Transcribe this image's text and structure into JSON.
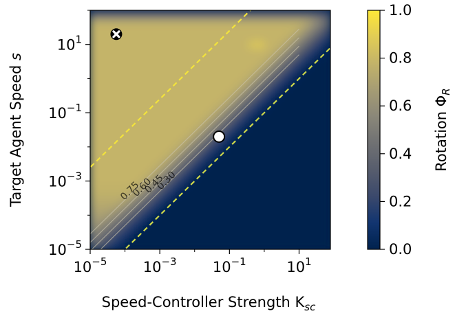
{
  "chart_data": {
    "type": "heatmap",
    "title": "",
    "xlabel": "Speed-Controller Strength K",
    "xlabel_sub": "sc",
    "ylabel": "Target Agent Speed ",
    "ylabel_var": "s",
    "x_scale": "log",
    "y_scale": "log",
    "xlim_exp": [
      -5,
      1.9
    ],
    "ylim_exp": [
      -5,
      2.0
    ],
    "x_ticks": [
      {
        "exp": -5,
        "base": "10",
        "sup": "−5"
      },
      {
        "exp": -3,
        "base": "10",
        "sup": "−3"
      },
      {
        "exp": -1,
        "base": "10",
        "sup": "−1"
      },
      {
        "exp": 1,
        "base": "10",
        "sup": "1"
      }
    ],
    "y_ticks": [
      {
        "exp": -5,
        "base": "10",
        "sup": "−5"
      },
      {
        "exp": -3,
        "base": "10",
        "sup": "−3"
      },
      {
        "exp": -1,
        "base": "10",
        "sup": "−1"
      },
      {
        "exp": 1,
        "base": "10",
        "sup": "1"
      }
    ],
    "colorbar": {
      "label": "Rotation Φ",
      "label_sub": "R",
      "range": [
        0,
        1
      ],
      "ticks": [
        "0.0",
        "0.2",
        "0.4",
        "0.6",
        "0.8",
        "1.0"
      ],
      "colors": [
        "#00224e",
        "#123570",
        "#3b496c",
        "#575d6d",
        "#707173",
        "#8a8779",
        "#a59c74",
        "#c3b369",
        "#e1cc55",
        "#fee838"
      ]
    },
    "contours": [
      {
        "label": "0.75",
        "level": 0.75
      },
      {
        "label": "0.60",
        "level": 0.6
      },
      {
        "label": "0.45",
        "level": 0.45
      },
      {
        "label": "0.30",
        "level": 0.3
      }
    ],
    "reference_lines": [
      {
        "name": "upper",
        "slope": 1,
        "intercept_exp": 2.4,
        "color": "#f2e33c"
      },
      {
        "name": "lower",
        "slope": 1,
        "intercept_exp": -1.0,
        "color": "#cfd84a"
      }
    ],
    "markers": [
      {
        "name": "cross",
        "x_exp": -4.25,
        "y_exp": 1.3
      },
      {
        "name": "circle",
        "x_exp": -1.3,
        "y_exp": -1.7
      }
    ]
  }
}
